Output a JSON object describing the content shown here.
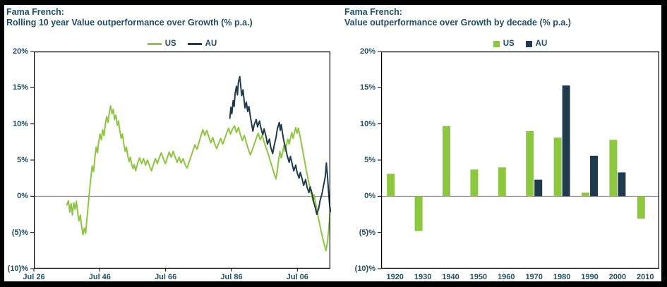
{
  "page": {
    "background": "#000000",
    "panel_background": "#ffffff"
  },
  "colors": {
    "title": "#1E4F63",
    "axis_text": "#1E4F63",
    "us": "#8DC63F",
    "au": "#1F3B4D",
    "plot_border": "#000000",
    "zero_line": "#7F7F7F"
  },
  "chart_data": [
    {
      "type": "line",
      "title": "Fama French:",
      "subtitle": "Rolling 10 year Value outperformance over Growth (% p.a.)",
      "legend_position": "top",
      "grid": false,
      "ylim": [
        -10,
        20
      ],
      "xlim": [
        1926.5,
        2016.5
      ],
      "ytick_values": [
        20,
        15,
        10,
        5,
        0,
        -5,
        -10
      ],
      "ytick_labels": [
        "20%",
        "15%",
        "10%",
        "5%",
        "0%",
        "(5)%",
        "(10)%"
      ],
      "xtick_values": [
        1926.5,
        1946.5,
        1966.5,
        1986.5,
        2006.5
      ],
      "xtick_labels": [
        "Jul 26",
        "Jul 46",
        "Jul 66",
        "Jul 86",
        "Jul 06"
      ],
      "series": [
        {
          "name": "US",
          "color": "#8DC63F",
          "points": [
            [
              1936.5,
              -1.2
            ],
            [
              1937,
              -0.6
            ],
            [
              1937.4,
              -2.2
            ],
            [
              1937.8,
              -1.0
            ],
            [
              1938.2,
              -2.6
            ],
            [
              1938.6,
              -0.9
            ],
            [
              1939,
              -1.8
            ],
            [
              1939.4,
              -0.7
            ],
            [
              1939.8,
              -2.3
            ],
            [
              1940.2,
              -3.4
            ],
            [
              1940.6,
              -2.6
            ],
            [
              1941,
              -4.2
            ],
            [
              1941.4,
              -5.3
            ],
            [
              1941.8,
              -4.4
            ],
            [
              1942.2,
              -5.1
            ],
            [
              1942.6,
              -3.2
            ],
            [
              1943,
              -1.2
            ],
            [
              1943.4,
              0.8
            ],
            [
              1943.8,
              2.6
            ],
            [
              1944.2,
              4.2
            ],
            [
              1944.6,
              3.4
            ],
            [
              1945,
              5.2
            ],
            [
              1945.4,
              6.8
            ],
            [
              1945.8,
              6.0
            ],
            [
              1946.2,
              7.6
            ],
            [
              1946.6,
              8.6
            ],
            [
              1947,
              7.8
            ],
            [
              1947.4,
              9.2
            ],
            [
              1947.8,
              8.4
            ],
            [
              1948.2,
              10.0
            ],
            [
              1948.6,
              11.0
            ],
            [
              1949,
              10.2
            ],
            [
              1949.4,
              11.6
            ],
            [
              1949.8,
              12.5
            ],
            [
              1950.2,
              11.4
            ],
            [
              1950.6,
              12.0
            ],
            [
              1951,
              10.6
            ],
            [
              1951.4,
              11.2
            ],
            [
              1951.8,
              9.8
            ],
            [
              1952.2,
              10.4
            ],
            [
              1952.6,
              9.0
            ],
            [
              1953,
              8.0
            ],
            [
              1953.4,
              8.6
            ],
            [
              1953.8,
              7.2
            ],
            [
              1954.2,
              6.2
            ],
            [
              1954.6,
              6.8
            ],
            [
              1955,
              5.6
            ],
            [
              1955.4,
              4.8
            ],
            [
              1955.8,
              5.4
            ],
            [
              1956.2,
              4.4
            ],
            [
              1956.6,
              3.8
            ],
            [
              1957,
              4.4
            ],
            [
              1957.4,
              3.5
            ],
            [
              1958,
              4.6
            ],
            [
              1958.6,
              5.3
            ],
            [
              1959.2,
              4.5
            ],
            [
              1959.8,
              5.2
            ],
            [
              1960.4,
              4.3
            ],
            [
              1961,
              5.0
            ],
            [
              1961.6,
              4.2
            ],
            [
              1962.2,
              3.5
            ],
            [
              1962.8,
              4.4
            ],
            [
              1963.4,
              5.2
            ],
            [
              1964,
              4.5
            ],
            [
              1964.6,
              5.4
            ],
            [
              1965.2,
              6.0
            ],
            [
              1965.8,
              5.2
            ],
            [
              1966.4,
              4.5
            ],
            [
              1967,
              5.3
            ],
            [
              1967.6,
              6.1
            ],
            [
              1968.2,
              5.4
            ],
            [
              1968.8,
              6.2
            ],
            [
              1969.4,
              5.4
            ],
            [
              1970,
              4.7
            ],
            [
              1970.6,
              5.4
            ],
            [
              1971.2,
              4.6
            ],
            [
              1971.8,
              5.2
            ],
            [
              1972.4,
              4.4
            ],
            [
              1973,
              3.9
            ],
            [
              1973.6,
              4.7
            ],
            [
              1974.2,
              5.5
            ],
            [
              1974.8,
              6.3
            ],
            [
              1975.4,
              7.1
            ],
            [
              1976,
              6.5
            ],
            [
              1976.6,
              7.4
            ],
            [
              1977.2,
              8.3
            ],
            [
              1977.8,
              9.2
            ],
            [
              1978.4,
              8.4
            ],
            [
              1979,
              9.1
            ],
            [
              1979.6,
              8.2
            ],
            [
              1980.2,
              7.4
            ],
            [
              1980.8,
              8.1
            ],
            [
              1981.4,
              7.2
            ],
            [
              1982,
              6.6
            ],
            [
              1982.6,
              7.3
            ],
            [
              1983.2,
              8.0
            ],
            [
              1983.8,
              7.2
            ],
            [
              1984.4,
              7.9
            ],
            [
              1985,
              8.7
            ],
            [
              1985.6,
              9.4
            ],
            [
              1986.2,
              8.6
            ],
            [
              1986.8,
              9.3
            ],
            [
              1987.4,
              9.7
            ],
            [
              1988,
              8.8
            ],
            [
              1988.6,
              9.5
            ],
            [
              1989.2,
              8.5
            ],
            [
              1989.8,
              7.7
            ],
            [
              1990.4,
              8.4
            ],
            [
              1991,
              7.4
            ],
            [
              1991.6,
              6.5
            ],
            [
              1992.2,
              5.7
            ],
            [
              1992.8,
              6.4
            ],
            [
              1993.4,
              7.2
            ],
            [
              1994,
              8.0
            ],
            [
              1994.6,
              8.7
            ],
            [
              1995.2,
              7.8
            ],
            [
              1995.8,
              8.4
            ],
            [
              1996.4,
              7.5
            ],
            [
              1997,
              6.7
            ],
            [
              1997.6,
              5.9
            ],
            [
              1998.2,
              5.0
            ],
            [
              1998.8,
              4.1
            ],
            [
              1999.4,
              3.2
            ],
            [
              2000,
              2.4
            ],
            [
              2000.4,
              3.6
            ],
            [
              2000.8,
              5.0
            ],
            [
              2001.2,
              6.2
            ],
            [
              2001.6,
              5.3
            ],
            [
              2002,
              6.0
            ],
            [
              2002.4,
              7.0
            ],
            [
              2002.8,
              6.2
            ],
            [
              2003.2,
              7.1
            ],
            [
              2003.6,
              7.9
            ],
            [
              2004,
              7.2
            ],
            [
              2004.4,
              8.0
            ],
            [
              2004.8,
              8.8
            ],
            [
              2005.2,
              8.0
            ],
            [
              2005.6,
              8.8
            ],
            [
              2006,
              9.5
            ],
            [
              2006.4,
              8.7
            ],
            [
              2006.8,
              9.4
            ],
            [
              2007.2,
              8.5
            ],
            [
              2007.6,
              7.6
            ],
            [
              2008,
              6.6
            ],
            [
              2008.4,
              5.6
            ],
            [
              2008.8,
              4.6
            ],
            [
              2009.2,
              3.6
            ],
            [
              2009.6,
              2.7
            ],
            [
              2010,
              1.8
            ],
            [
              2010.4,
              1.0
            ],
            [
              2010.8,
              0.2
            ],
            [
              2011.2,
              -0.6
            ],
            [
              2011.6,
              0.2
            ],
            [
              2012,
              -0.9
            ],
            [
              2012.4,
              -1.8
            ],
            [
              2012.8,
              -2.8
            ],
            [
              2013.2,
              -3.7
            ],
            [
              2013.6,
              -4.6
            ],
            [
              2014,
              -5.4
            ],
            [
              2014.4,
              -6.2
            ],
            [
              2014.8,
              -6.9
            ],
            [
              2015.2,
              -7.5
            ],
            [
              2015.6,
              -6.4
            ],
            [
              2016,
              -4.6
            ],
            [
              2016.3,
              -2.8
            ],
            [
              2016.5,
              -1.6
            ]
          ]
        },
        {
          "name": "AU",
          "color": "#1F3B4D",
          "points": [
            [
              1986,
              10.8
            ],
            [
              1986.3,
              12.3
            ],
            [
              1986.6,
              11.4
            ],
            [
              1987,
              13.2
            ],
            [
              1987.3,
              12.4
            ],
            [
              1987.6,
              14.2
            ],
            [
              1988,
              15.2
            ],
            [
              1988.3,
              14.0
            ],
            [
              1988.6,
              15.8
            ],
            [
              1989,
              16.5
            ],
            [
              1989.3,
              15.2
            ],
            [
              1989.6,
              13.9
            ],
            [
              1990,
              14.7
            ],
            [
              1990.3,
              13.4
            ],
            [
              1990.6,
              12.2
            ],
            [
              1991,
              13.0
            ],
            [
              1991.4,
              11.7
            ],
            [
              1991.8,
              12.4
            ],
            [
              1992.2,
              11.1
            ],
            [
              1992.6,
              10.0
            ],
            [
              1993,
              9.0
            ],
            [
              1993.4,
              9.9
            ],
            [
              1994,
              10.6
            ],
            [
              1994.4,
              9.6
            ],
            [
              1995,
              10.4
            ],
            [
              1995.4,
              9.5
            ],
            [
              1996,
              8.5
            ],
            [
              1996.4,
              9.3
            ],
            [
              1997,
              8.2
            ],
            [
              1997.4,
              7.2
            ],
            [
              1998,
              7.9
            ],
            [
              1998.4,
              6.8
            ],
            [
              1999,
              5.9
            ],
            [
              1999.4,
              6.9
            ],
            [
              2000,
              8.1
            ],
            [
              2000.4,
              9.3
            ],
            [
              2001,
              10.2
            ],
            [
              2001.3,
              9.1
            ],
            [
              2001.6,
              9.9
            ],
            [
              2002,
              8.7
            ],
            [
              2002.4,
              7.6
            ],
            [
              2003,
              6.5
            ],
            [
              2003.4,
              5.6
            ],
            [
              2004,
              4.7
            ],
            [
              2004.4,
              5.5
            ],
            [
              2005,
              4.3
            ],
            [
              2005.4,
              3.5
            ],
            [
              2006,
              4.3
            ],
            [
              2006.4,
              3.3
            ],
            [
              2007,
              2.5
            ],
            [
              2007.4,
              3.3
            ],
            [
              2008,
              2.3
            ],
            [
              2008.4,
              1.5
            ],
            [
              2009,
              2.3
            ],
            [
              2009.4,
              1.3
            ],
            [
              2010,
              0.5
            ],
            [
              2010.4,
              1.3
            ],
            [
              2011,
              0.3
            ],
            [
              2011.4,
              -0.7
            ],
            [
              2012,
              -1.7
            ],
            [
              2012.4,
              -2.5
            ],
            [
              2013,
              -1.6
            ],
            [
              2013.4,
              -0.6
            ],
            [
              2014,
              0.4
            ],
            [
              2014.4,
              1.4
            ],
            [
              2015,
              2.8
            ],
            [
              2015.3,
              4.6
            ],
            [
              2015.6,
              3.0
            ],
            [
              2016,
              0.4
            ],
            [
              2016.3,
              -1.3
            ],
            [
              2016.5,
              -2.1
            ]
          ]
        }
      ]
    },
    {
      "type": "bar",
      "title": "Fama French:",
      "subtitle": "Value outperformance over Growth by decade (% p.a.)",
      "legend_position": "top",
      "grid": false,
      "ylim": [
        -10,
        20
      ],
      "ytick_values": [
        20,
        15,
        10,
        5,
        0,
        -5,
        -10
      ],
      "ytick_labels": [
        "20%",
        "15%",
        "10%",
        "5%",
        "0%",
        "(5)%",
        "(10)%"
      ],
      "categories": [
        "1920",
        "1930",
        "1940",
        "1950",
        "1960",
        "1970",
        "1980",
        "1990",
        "2000",
        "2010"
      ],
      "series": [
        {
          "name": "US",
          "color": "#8DC63F",
          "values": [
            3.1,
            -4.8,
            9.7,
            3.7,
            4.0,
            9.0,
            8.1,
            0.5,
            7.8,
            -3.1
          ]
        },
        {
          "name": "AU",
          "color": "#1F3B4D",
          "values": [
            null,
            null,
            null,
            null,
            null,
            2.3,
            15.3,
            5.6,
            3.3,
            null
          ]
        }
      ]
    }
  ]
}
